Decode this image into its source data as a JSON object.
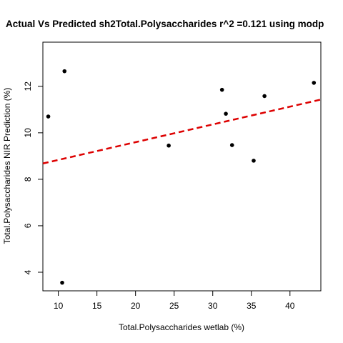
{
  "chart_data": {
    "type": "scatter",
    "title": "Actual Vs Predicted sh2Total.Polysaccharides r^2 =0.121 using modp",
    "xlabel": "Total.Polysaccharides wetlab (%)",
    "ylabel": "Total.Polysaccharides NIR Prediction (%)",
    "xlim": [
      8.0,
      44.0
    ],
    "ylim": [
      3.2,
      13.9
    ],
    "x_ticks": [
      10,
      15,
      20,
      25,
      30,
      35,
      40
    ],
    "y_ticks": [
      4,
      6,
      8,
      10,
      12
    ],
    "x_tick_labels": [
      "10",
      "15",
      "20",
      "25",
      "30",
      "35",
      "40"
    ],
    "y_tick_labels": [
      "4",
      "6",
      "8",
      "10",
      "12"
    ],
    "points": [
      {
        "x": 8.7,
        "y": 10.7
      },
      {
        "x": 10.5,
        "y": 3.55
      },
      {
        "x": 10.8,
        "y": 12.65
      },
      {
        "x": 24.3,
        "y": 9.45
      },
      {
        "x": 31.2,
        "y": 11.85
      },
      {
        "x": 31.7,
        "y": 10.82
      },
      {
        "x": 32.5,
        "y": 9.47
      },
      {
        "x": 35.3,
        "y": 8.8
      },
      {
        "x": 36.7,
        "y": 11.58
      },
      {
        "x": 43.1,
        "y": 12.15
      }
    ],
    "fit_line": {
      "x": [
        8.0,
        44.0
      ],
      "y": [
        8.68,
        11.43
      ],
      "color": "#DD0000",
      "style": "dashed"
    },
    "point_color": "#000000",
    "grid": false
  }
}
